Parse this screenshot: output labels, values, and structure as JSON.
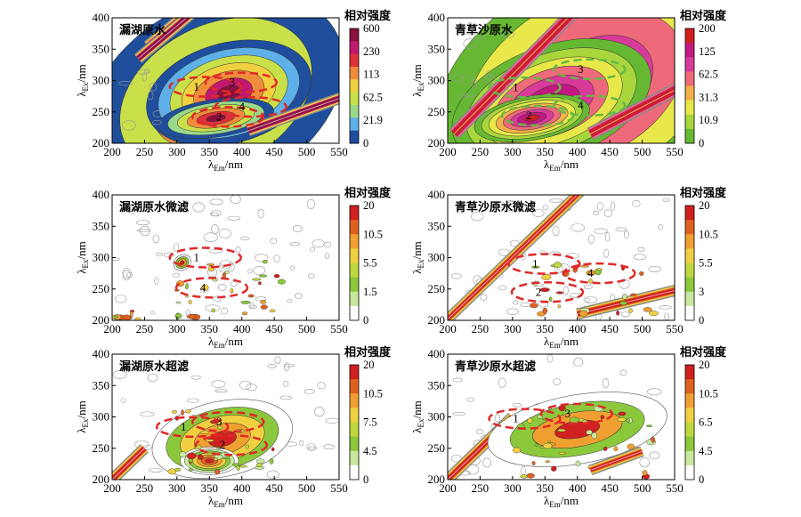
{
  "chart_data": [
    {
      "type": "heatmap",
      "title": "漏湖原水",
      "xlabel": "λEm/nm",
      "ylabel": "λEx/nm",
      "xlim": [
        200,
        550
      ],
      "ylim": [
        200,
        400
      ],
      "x_ticks": [
        "200",
        "250",
        "300",
        "350",
        "400",
        "450",
        "500",
        "550"
      ],
      "y_ticks": [
        "200",
        "250",
        "300",
        "350",
        "400"
      ],
      "colorbar_title": "相对强度",
      "colorbar_ticks": [
        "600",
        "230",
        "113",
        "62.5",
        "21.9",
        "0"
      ],
      "colorbar_colors": [
        "#1f4e9c",
        "#5fb0e8",
        "#9bd98a",
        "#c9e04a",
        "#f0d040",
        "#f08c3c",
        "#e0303a",
        "#c21870",
        "#8a1040"
      ],
      "regions": [
        {
          "label": "1",
          "em": 330,
          "ex": 290
        },
        {
          "label": "2",
          "em": 365,
          "ex": 242
        },
        {
          "label": "3",
          "em": 385,
          "ex": 297
        },
        {
          "label": "4",
          "em": 400,
          "ex": 258
        }
      ]
    },
    {
      "type": "heatmap",
      "title": "青草沙原水",
      "xlabel": "λEm/nm",
      "ylabel": "λEx/nm",
      "xlim": [
        200,
        550
      ],
      "ylim": [
        200,
        400
      ],
      "x_ticks": [
        "200",
        "250",
        "300",
        "350",
        "400",
        "450",
        "500",
        "550"
      ],
      "y_ticks": [
        "200",
        "250",
        "300",
        "350",
        "400"
      ],
      "colorbar_title": "相对强度",
      "colorbar_ticks": [
        "200",
        "125",
        "62.5",
        "31.3",
        "10.9",
        "0"
      ],
      "colorbar_colors": [
        "#66b832",
        "#a8d63c",
        "#e8e84a",
        "#f4b04a",
        "#ee6a7a",
        "#d83a9a",
        "#c21880",
        "#d02020"
      ],
      "regions": [
        {
          "label": "1",
          "em": 305,
          "ex": 289
        },
        {
          "label": "2",
          "em": 325,
          "ex": 244
        },
        {
          "label": "3",
          "em": 405,
          "ex": 318
        },
        {
          "label": "4",
          "em": 405,
          "ex": 260
        }
      ]
    },
    {
      "type": "heatmap",
      "title": "漏湖原水微滤",
      "xlabel": "λEm/nm",
      "ylabel": "λEx/nm",
      "xlim": [
        200,
        550
      ],
      "ylim": [
        200,
        400
      ],
      "x_ticks": [
        "200",
        "250",
        "300",
        "350",
        "400",
        "450",
        "500",
        "550"
      ],
      "y_ticks": [
        "200",
        "250",
        "300",
        "350",
        "400"
      ],
      "colorbar_title": "相对强度",
      "colorbar_ticks": [
        "20",
        "10.5",
        "5.5",
        "1.5",
        "0"
      ],
      "colorbar_colors": [
        "#ffffff",
        "#c8e8a0",
        "#8cc83c",
        "#c0d840",
        "#f0d040",
        "#f0a030",
        "#e06020",
        "#d02020"
      ],
      "regions": [
        {
          "label": "1",
          "em": 330,
          "ex": 300
        },
        {
          "label": "4",
          "em": 340,
          "ex": 252
        }
      ]
    },
    {
      "type": "heatmap",
      "title": "青草沙原水微滤",
      "xlabel": "λEm/nm",
      "ylabel": "λEx/nm",
      "xlim": [
        200,
        550
      ],
      "ylim": [
        200,
        400
      ],
      "x_ticks": [
        "200",
        "250",
        "300",
        "350",
        "400",
        "450",
        "500",
        "550"
      ],
      "y_ticks": [
        "200",
        "250",
        "300",
        "350",
        "400"
      ],
      "colorbar_title": "相对强度",
      "colorbar_ticks": [
        "20",
        "10.5",
        "5.5",
        "3",
        "0"
      ],
      "colorbar_colors": [
        "#ffffff",
        "#c8e8a0",
        "#8cc83c",
        "#c0d840",
        "#f0d040",
        "#f0a030",
        "#e06020",
        "#d02020"
      ],
      "regions": [
        {
          "label": "1",
          "em": 335,
          "ex": 290
        },
        {
          "label": "2",
          "em": 340,
          "ex": 245
        },
        {
          "label": "4",
          "em": 420,
          "ex": 275
        }
      ]
    },
    {
      "type": "heatmap",
      "title": "漏湖原水超滤",
      "xlabel": "λEm/nm",
      "ylabel": "λEx/nm",
      "xlim": [
        200,
        550
      ],
      "ylim": [
        200,
        400
      ],
      "x_ticks": [
        "200",
        "250",
        "300",
        "350",
        "400",
        "450",
        "500",
        "550"
      ],
      "y_ticks": [
        "200",
        "250",
        "300",
        "350",
        "400"
      ],
      "colorbar_title": "相对强度",
      "colorbar_ticks": [
        "20",
        "10.5",
        "7.5",
        "4.5",
        "0"
      ],
      "colorbar_colors": [
        "#ffffff",
        "#c8e8a0",
        "#8cc83c",
        "#c0d840",
        "#f0d040",
        "#f0a030",
        "#e06020",
        "#d02020"
      ],
      "regions": [
        {
          "label": "1",
          "em": 310,
          "ex": 284
        },
        {
          "label": "2",
          "em": 370,
          "ex": 255
        },
        {
          "label": "3",
          "em": 365,
          "ex": 292
        }
      ]
    },
    {
      "type": "heatmap",
      "title": "青草沙原水超滤",
      "xlabel": "λEm/nm",
      "ylabel": "λEx/nm",
      "xlim": [
        200,
        550
      ],
      "ylim": [
        200,
        400
      ],
      "x_ticks": [
        "200",
        "250",
        "300",
        "350",
        "400",
        "450",
        "500",
        "550"
      ],
      "y_ticks": [
        "200",
        "250",
        "300",
        "350",
        "400"
      ],
      "colorbar_title": "相对强度",
      "colorbar_ticks": [
        "20",
        "10.5",
        "6.5",
        "4.5",
        "0"
      ],
      "colorbar_colors": [
        "#ffffff",
        "#c8e8a0",
        "#8cc83c",
        "#c0d840",
        "#f0d040",
        "#f0a030",
        "#e06020",
        "#d02020"
      ],
      "regions": [
        {
          "label": "1",
          "em": 305,
          "ex": 297
        },
        {
          "label": "3",
          "em": 385,
          "ex": 305
        }
      ]
    }
  ]
}
